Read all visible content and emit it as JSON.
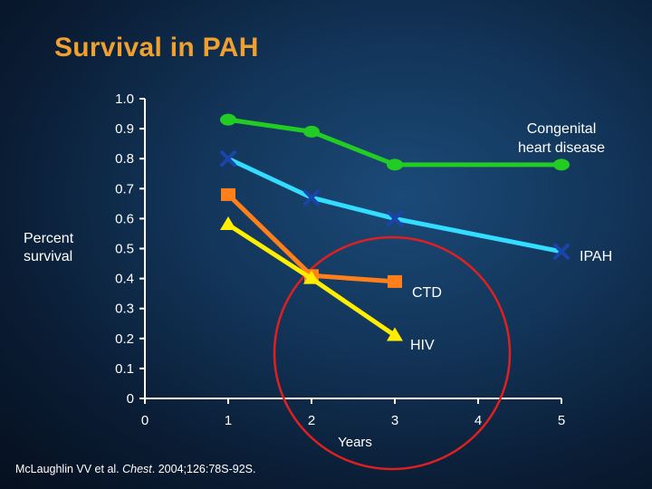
{
  "chart_data": {
    "type": "line",
    "title": "Survival in PAH",
    "xlabel": "Years",
    "ylabel": "Percent survival",
    "xlim": [
      0,
      5
    ],
    "ylim": [
      0,
      1.0
    ],
    "x_ticks": [
      0,
      1,
      2,
      3,
      4,
      5
    ],
    "x_tick_labels": [
      "0",
      "1",
      "2",
      "3",
      "4",
      "5"
    ],
    "y_ticks": [
      0,
      0.1,
      0.2,
      0.3,
      0.4,
      0.5,
      0.6,
      0.7,
      0.8,
      0.9,
      1.0
    ],
    "y_tick_labels": [
      "0",
      "0.1",
      "0.2",
      "0.3",
      "0.4",
      "0.5",
      "0.6",
      "0.7",
      "0.8",
      "0.9",
      "1.0"
    ],
    "series": [
      {
        "name": "Congenital heart disease",
        "label_lines": [
          "Congenital",
          "heart disease"
        ],
        "key": "chd",
        "color": "#22cc22",
        "marker": "circle",
        "x": [
          1,
          2,
          3,
          5
        ],
        "values": [
          0.93,
          0.89,
          0.78,
          0.78
        ]
      },
      {
        "name": "IPAH",
        "label_lines": [
          "IPAH"
        ],
        "key": "ipah",
        "color": "#33ddff",
        "marker": "x",
        "x": [
          1,
          2,
          3,
          5
        ],
        "values": [
          0.8,
          0.67,
          0.6,
          0.49
        ]
      },
      {
        "name": "CTD",
        "label_lines": [
          "CTD"
        ],
        "key": "ctd",
        "color": "#ff7f1a",
        "marker": "square",
        "x": [
          1,
          2,
          3
        ],
        "values": [
          0.68,
          0.41,
          0.39
        ]
      },
      {
        "name": "HIV",
        "label_lines": [
          "HIV"
        ],
        "key": "hiv",
        "color": "#ffee00",
        "marker": "triangle",
        "x": [
          1,
          2,
          3
        ],
        "values": [
          0.58,
          0.4,
          0.21
        ]
      }
    ],
    "annotations": [
      {
        "type": "circle",
        "color": "#e02020",
        "note": "highlights CTD and HIV curves at years 2-3"
      }
    ]
  },
  "citation": {
    "authors": "McLaughlin VV et al. ",
    "journal": "Chest",
    "details": ". 2004;126:78S-92S."
  }
}
